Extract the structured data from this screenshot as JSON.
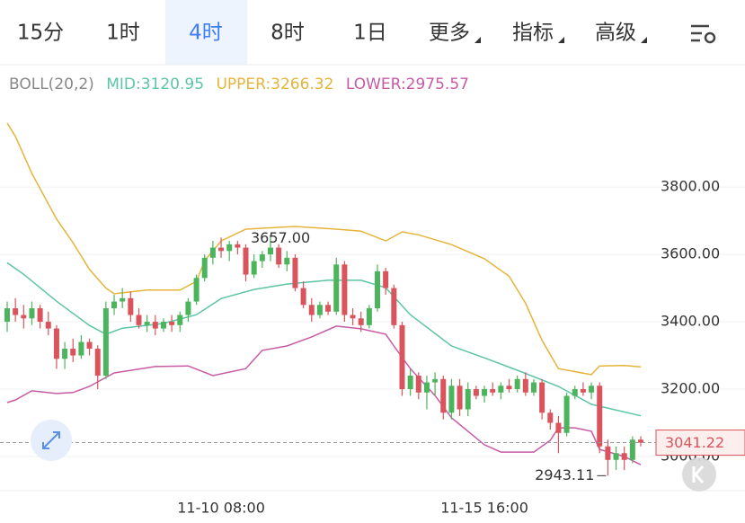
{
  "tabs": [
    "15分",
    "1时",
    "4时",
    "8时",
    "1日",
    "更多",
    "指标",
    "高级"
  ],
  "selected": 2,
  "dropdown_from": 5,
  "chart_data": {
    "type": "candlestick",
    "indicator": "BOLL(20,2)",
    "categories": [
      null,
      null,
      null,
      null,
      null,
      null,
      null,
      null,
      null,
      null,
      null,
      null,
      null,
      null,
      null,
      null,
      null,
      null,
      null,
      null,
      null,
      null,
      null,
      null,
      null,
      null,
      "11-10 08:00",
      null,
      null,
      null,
      null,
      null,
      null,
      null,
      null,
      null,
      null,
      null,
      null,
      null,
      null,
      null,
      null,
      null,
      null,
      null,
      null,
      null,
      null,
      null,
      null,
      null,
      null,
      null,
      null,
      null,
      null,
      null,
      "11-15 16:00",
      null,
      null,
      null,
      null,
      null,
      null,
      null,
      null,
      null,
      null,
      null,
      null,
      null,
      null,
      null,
      null,
      null,
      null,
      null
    ],
    "open": [
      3400,
      3440,
      3420,
      3410,
      3440,
      3400,
      3380,
      3290,
      3320,
      3300,
      3340,
      3320,
      3240,
      3440,
      3460,
      3470,
      3420,
      3390,
      3400,
      3380,
      3400,
      3390,
      3420,
      3460,
      3530,
      3590,
      3620,
      3610,
      3630,
      3620,
      3540,
      3580,
      3600,
      3620,
      3570,
      3590,
      3500,
      3450,
      3420,
      3450,
      3430,
      3570,
      3420,
      3410,
      3390,
      3440,
      3550,
      3500,
      3390,
      3200,
      3240,
      3190,
      3220,
      3230,
      3130,
      3210,
      3140,
      3200,
      3180,
      3200,
      3190,
      3210,
      3200,
      3230,
      3190,
      3220,
      3130,
      3100,
      3070,
      3180,
      3200,
      3190,
      3210,
      3030,
      2990,
      3010,
      2990,
      3050
    ],
    "high": [
      3460,
      3470,
      3450,
      3460,
      3450,
      3430,
      3390,
      3340,
      3350,
      3360,
      3350,
      3330,
      3460,
      3480,
      3500,
      3490,
      3440,
      3420,
      3420,
      3410,
      3420,
      3430,
      3470,
      3540,
      3600,
      3640,
      3650,
      3640,
      3640,
      3630,
      3600,
      3610,
      3657,
      3630,
      3610,
      3600,
      3520,
      3470,
      3460,
      3460,
      3590,
      3580,
      3440,
      3430,
      3450,
      3570,
      3560,
      3510,
      3400,
      3260,
      3250,
      3240,
      3250,
      3240,
      3230,
      3230,
      3220,
      3210,
      3210,
      3220,
      3220,
      3230,
      3240,
      3250,
      3230,
      3230,
      3140,
      3120,
      3190,
      3210,
      3220,
      3220,
      3220,
      3050,
      3030,
      3030,
      3060,
      3060
    ],
    "low": [
      3370,
      3400,
      3380,
      3390,
      3380,
      3360,
      3260,
      3260,
      3280,
      3290,
      3300,
      3200,
      3230,
      3420,
      3440,
      3400,
      3380,
      3370,
      3360,
      3370,
      3370,
      3370,
      3400,
      3450,
      3520,
      3570,
      3590,
      3580,
      3600,
      3520,
      3530,
      3560,
      3580,
      3560,
      3550,
      3490,
      3440,
      3400,
      3410,
      3420,
      3420,
      3400,
      3390,
      3370,
      3380,
      3430,
      3480,
      3380,
      3180,
      3180,
      3170,
      3140,
      3180,
      3110,
      3110,
      3120,
      3120,
      3170,
      3160,
      3180,
      3170,
      3190,
      3190,
      3180,
      3180,
      3110,
      3080,
      3010,
      3060,
      3170,
      3180,
      3170,
      3010,
      2943.11,
      2960,
      2960,
      2980,
      3030
    ],
    "close": [
      3440,
      3420,
      3410,
      3440,
      3400,
      3380,
      3290,
      3320,
      3300,
      3340,
      3320,
      3240,
      3440,
      3460,
      3470,
      3420,
      3390,
      3400,
      3380,
      3400,
      3390,
      3420,
      3460,
      3530,
      3590,
      3620,
      3610,
      3630,
      3620,
      3540,
      3580,
      3600,
      3620,
      3570,
      3590,
      3500,
      3450,
      3420,
      3450,
      3430,
      3570,
      3420,
      3410,
      3390,
      3440,
      3550,
      3500,
      3390,
      3200,
      3240,
      3190,
      3220,
      3230,
      3130,
      3210,
      3140,
      3200,
      3180,
      3200,
      3190,
      3210,
      3200,
      3230,
      3190,
      3220,
      3130,
      3100,
      3070,
      3180,
      3200,
      3190,
      3210,
      3030,
      2990,
      3010,
      2990,
      3050,
      3041.22
    ],
    "up_color": "#4cb45c",
    "down_color": "#d9545c",
    "high_label": "3657.00",
    "series": [
      {
        "name": "MID:3120.95",
        "color": "#5cc5a5",
        "x": [
          0,
          2,
          6,
          10,
          12,
          14,
          19,
          23,
          26,
          30,
          34,
          39,
          43,
          46,
          49,
          54,
          58,
          62,
          67,
          71,
          77
        ],
        "values": [
          3575,
          3541,
          3461,
          3389,
          3363,
          3381,
          3395,
          3421,
          3469,
          3496,
          3512,
          3523,
          3523,
          3501,
          3421,
          3328,
          3293,
          3256,
          3208,
          3155,
          3120.95
        ]
      },
      {
        "name": "UPPER:3266.32",
        "color": "#e5b43a",
        "x": [
          0,
          1,
          3,
          6,
          8,
          10,
          12,
          13,
          17,
          21,
          23,
          24,
          26,
          29,
          35,
          40,
          43,
          46,
          48,
          50,
          54,
          58,
          61,
          63,
          65,
          67,
          71,
          72,
          75,
          77
        ],
        "values": [
          3990,
          3950,
          3840,
          3705,
          3635,
          3555,
          3500,
          3483,
          3494,
          3494,
          3520,
          3581,
          3640,
          3675,
          3683,
          3675,
          3669,
          3640,
          3667,
          3658,
          3629,
          3587,
          3535,
          3455,
          3345,
          3261,
          3243,
          3269,
          3270,
          3266.32
        ]
      },
      {
        "name": "LOWER:2975.57",
        "color": "#c75aa5",
        "x": [
          0,
          1,
          3,
          6,
          8,
          10,
          13,
          18,
          22,
          25,
          29,
          31,
          34,
          37,
          40,
          43,
          46,
          47,
          49,
          52,
          54,
          56,
          58,
          60,
          64,
          66,
          67,
          69,
          71,
          72,
          75,
          77
        ],
        "values": [
          3160,
          3168,
          3195,
          3187,
          3190,
          3208,
          3248,
          3267,
          3269,
          3240,
          3261,
          3315,
          3328,
          3355,
          3387,
          3379,
          3363,
          3328,
          3261,
          3181,
          3115,
          3075,
          3035,
          3013,
          3013,
          3048,
          3085,
          3085,
          3075,
          3021,
          3000,
          2975.57
        ]
      }
    ],
    "ylim": [
      2900,
      4075
    ],
    "yticks": [
      {
        "value": 3000,
        "label": "3000.00"
      },
      {
        "value": 3200,
        "label": "3200.00"
      },
      {
        "value": 3400,
        "label": "3400.00"
      },
      {
        "value": 3600,
        "label": "3600.00"
      },
      {
        "value": 3800,
        "label": "3800.00"
      }
    ],
    "grid": true
  }
}
